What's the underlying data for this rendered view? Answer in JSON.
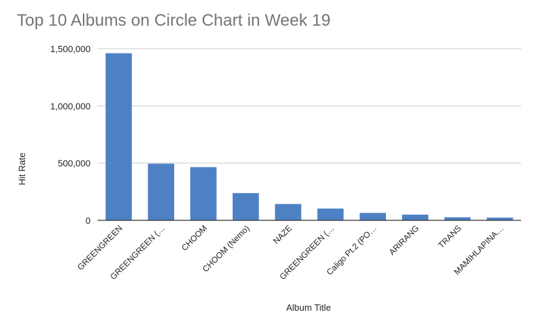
{
  "chart_data": {
    "type": "bar",
    "title": "Top 10 Albums on Circle Chart in Week 19",
    "xlabel": "Album Title",
    "ylabel": "Hit Rate",
    "categories": [
      "GREENGREEN",
      "GREENGREEN (…",
      "CHOOM",
      "CHOOM (Nemo)",
      "NAZE",
      "GREENGREEN (…",
      "Caligo Pt.2 (PO…",
      "ARIRANG",
      "TRANS",
      "MAMIHLAPINA…"
    ],
    "values": [
      1460000,
      495000,
      465000,
      238000,
      143000,
      103000,
      65000,
      50000,
      27000,
      24000
    ],
    "ylim": [
      0,
      1500000
    ],
    "yticks": [
      0,
      500000,
      1000000,
      1500000
    ],
    "ytick_labels": [
      "0",
      "500,000",
      "1,000,000",
      "1,500,000"
    ],
    "grid": true,
    "legend": "none",
    "bar_color": "#4e81c4",
    "grid_color": "#cccccc",
    "axis_color": "#333333",
    "title_color": "#757575",
    "text_color": "#222222"
  }
}
